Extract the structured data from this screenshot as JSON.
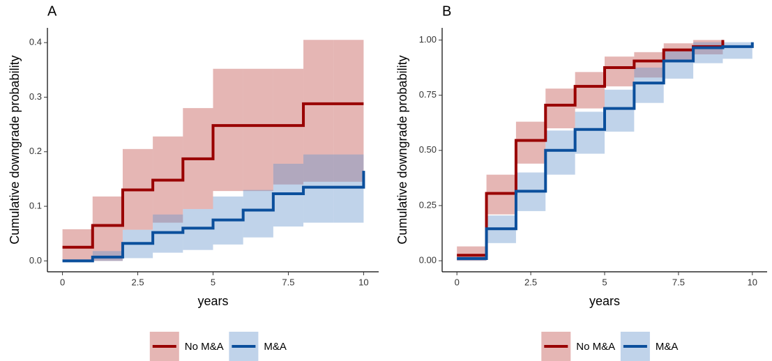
{
  "chart_data": [
    {
      "type": "step",
      "title": "A",
      "xlabel": "years",
      "ylabel": "Cumulative downgrade probability",
      "xlim": [
        -0.5,
        10.5
      ],
      "xticks": [
        0,
        2.5,
        5,
        7.5,
        10
      ],
      "ylim": [
        -0.02,
        0.427
      ],
      "yticks": [
        {
          "value": 0,
          "label": "0.0"
        },
        0.1,
        0.2,
        0.3,
        0.4
      ],
      "legend": "bottom",
      "series": [
        {
          "name": "No M&A",
          "color": "#990000",
          "band_color": "#c0504d",
          "x": [
            0,
            1,
            2,
            3,
            4,
            5,
            6,
            7,
            8,
            9,
            10
          ],
          "values": [
            0.025,
            0.065,
            0.13,
            0.148,
            0.187,
            0.248,
            0.248,
            0.248,
            0.288,
            0.288,
            0.288
          ],
          "lower": [
            0,
            0,
            0.057,
            0.07,
            0.095,
            0.128,
            0.128,
            0.14,
            0.145,
            0.145,
            null
          ],
          "upper": [
            0.058,
            0.118,
            0.205,
            0.228,
            0.28,
            0.352,
            0.352,
            0.352,
            0.405,
            0.405,
            null
          ]
        },
        {
          "name": "M&A",
          "color": "#0b4f9c",
          "band_color": "#6a97cc",
          "x": [
            0,
            1,
            2,
            3,
            4,
            5,
            6,
            7,
            8,
            9,
            10
          ],
          "values": [
            0,
            0.007,
            0.032,
            0.052,
            0.06,
            0.075,
            0.093,
            0.123,
            0.135,
            0.135,
            0.165
          ],
          "lower": [
            0,
            0,
            0.005,
            0.015,
            0.02,
            0.03,
            0.043,
            0.063,
            0.07,
            0.07,
            null
          ],
          "upper": [
            0.003,
            0.018,
            0.057,
            0.085,
            0.095,
            0.118,
            0.13,
            0.178,
            0.195,
            0.195,
            null
          ]
        }
      ]
    },
    {
      "type": "step",
      "title": "B",
      "xlabel": "years",
      "ylabel": "Cumulative downgrade probability",
      "xlim": [
        -0.5,
        10.5
      ],
      "xticks": [
        0,
        2.5,
        5,
        7.5,
        10
      ],
      "ylim": [
        -0.05,
        1.055
      ],
      "yticks": [
        {
          "value": 0,
          "label": "0.00"
        },
        0.25,
        {
          "value": 0.5,
          "label": "0.50"
        },
        0.75,
        {
          "value": 1,
          "label": "1.00"
        }
      ],
      "legend": "bottom",
      "series": [
        {
          "name": "No M&A",
          "color": "#990000",
          "band_color": "#c0504d",
          "x": [
            0,
            1,
            2,
            3,
            4,
            5,
            6,
            7,
            8,
            9
          ],
          "values": [
            0.025,
            0.305,
            0.545,
            0.705,
            0.79,
            0.875,
            0.905,
            0.955,
            0.97,
            1.0
          ],
          "lower": [
            0,
            0.21,
            0.44,
            0.6,
            0.69,
            0.79,
            0.83,
            0.9,
            0.935,
            null
          ],
          "upper": [
            0.065,
            0.39,
            0.63,
            0.78,
            0.855,
            0.925,
            0.945,
            0.985,
            1.0,
            null
          ]
        },
        {
          "name": "M&A",
          "color": "#0b4f9c",
          "band_color": "#6a97cc",
          "x": [
            0,
            1,
            2,
            3,
            4,
            5,
            6,
            7,
            8,
            9,
            10
          ],
          "values": [
            0.01,
            0.145,
            0.315,
            0.5,
            0.595,
            0.69,
            0.805,
            0.905,
            0.965,
            0.97,
            0.99
          ],
          "lower": [
            0,
            0.08,
            0.225,
            0.39,
            0.485,
            0.585,
            0.715,
            0.825,
            0.895,
            0.915,
            null
          ],
          "upper": [
            0.02,
            0.205,
            0.4,
            0.59,
            0.675,
            0.775,
            0.875,
            0.955,
            0.99,
            0.99,
            null
          ]
        }
      ]
    }
  ]
}
